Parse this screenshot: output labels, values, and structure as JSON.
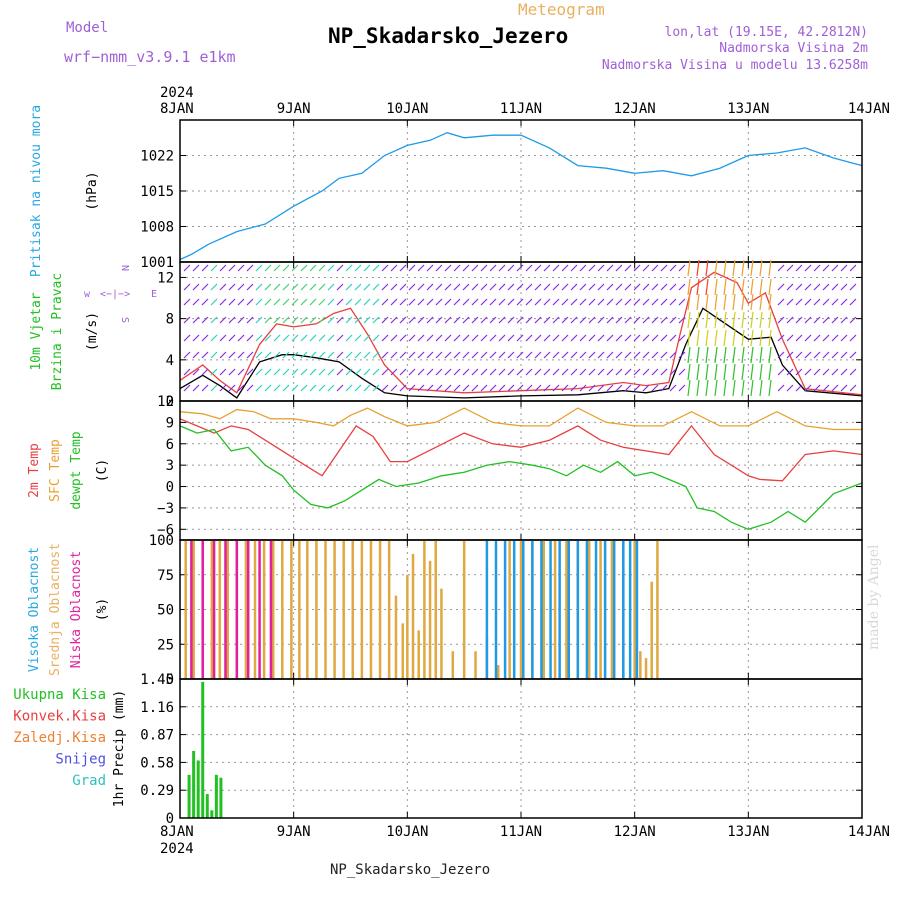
{
  "header": {
    "model_label": "Model",
    "model_name": "wrf−nmm_v3.9.1  e1km",
    "subtitle": "Meteogram",
    "title": "NP_Skadarsko_Jezero",
    "coords": "lon,lat (19.15E, 42.2812N)",
    "elevation": "Nadmorska Visina 2m",
    "model_elevation": "Nadmorska Visina u modelu 13.6258m",
    "footer_title": "NP_Skadarsko_Jezero",
    "watermark": "made by Angel",
    "year": "2024",
    "colors": {
      "purple": "#a05fd6",
      "orange": "#e8b060",
      "title": "#000000"
    }
  },
  "chart_data": [
    {
      "type": "line",
      "title": "",
      "ylabel": [
        "Pritisak na nivou mora",
        "(hPa)"
      ],
      "ylabel_colors": [
        "#28a8e0",
        "#000000"
      ],
      "x_ticks": [
        "8JAN",
        "9JAN",
        "10JAN",
        "11JAN",
        "12JAN",
        "13JAN",
        "14JAN"
      ],
      "ylim": [
        1001,
        1029
      ],
      "y_ticks": [
        1001,
        1008,
        1015,
        1022
      ],
      "grid": true,
      "series": [
        {
          "color": "#1e9be6",
          "x": [
            0,
            0.1,
            0.25,
            0.5,
            0.75,
            1.0,
            1.25,
            1.4,
            1.6,
            1.8,
            2.0,
            2.2,
            2.35,
            2.5,
            2.75,
            3.0,
            3.25,
            3.5,
            3.75,
            4.0,
            4.25,
            4.5,
            4.75,
            5.0,
            5.25,
            5.5,
            5.75,
            6.0
          ],
          "y": [
            1001.5,
            1002.5,
            1004.5,
            1007,
            1008.5,
            1012,
            1015,
            1017.5,
            1018.5,
            1022,
            1024,
            1025,
            1026.5,
            1025.5,
            1026,
            1026,
            1023.5,
            1020,
            1019.5,
            1018.5,
            1019,
            1018,
            1019.5,
            1022,
            1022.5,
            1023.5,
            1021.5,
            1020
          ]
        }
      ]
    },
    {
      "type": "line",
      "title": "",
      "ylabel": [
        "10m Vjetar",
        "Brzina i Pravac",
        "(m/s)"
      ],
      "ylabel_colors": [
        "#22c022",
        "#22c022",
        "#000000"
      ],
      "compass": [
        "w",
        "<−|−>",
        "E",
        "N",
        "S"
      ],
      "ylim": [
        0,
        13.5
      ],
      "y_ticks": [
        0,
        4,
        8,
        12
      ],
      "grid": true,
      "series": [
        {
          "color": "#000000",
          "x": [
            0,
            0.2,
            0.35,
            0.5,
            0.7,
            0.9,
            1.0,
            1.2,
            1.4,
            1.6,
            1.8,
            2.0,
            2.5,
            3.0,
            3.5,
            3.9,
            4.1,
            4.3,
            4.45,
            4.6,
            4.8,
            5.0,
            5.2,
            5.3,
            5.5,
            6.0
          ],
          "y": [
            1.2,
            2.5,
            1.5,
            0.3,
            3.8,
            4.5,
            4.5,
            4.2,
            3.8,
            2.2,
            0.8,
            0.5,
            0.3,
            0.5,
            0.6,
            1.0,
            0.8,
            1.2,
            5.5,
            9.0,
            7.5,
            6.0,
            6.2,
            3.5,
            1.0,
            0.5
          ]
        },
        {
          "color": "#e84040",
          "x": [
            0,
            0.2,
            0.35,
            0.5,
            0.7,
            0.85,
            1.0,
            1.2,
            1.35,
            1.5,
            1.65,
            1.8,
            2.0,
            2.5,
            3.0,
            3.5,
            3.9,
            4.1,
            4.3,
            4.4,
            4.5,
            4.7,
            4.9,
            5.0,
            5.15,
            5.3,
            5.5,
            6.0
          ],
          "y": [
            2.0,
            3.5,
            2.0,
            0.8,
            5.5,
            7.5,
            7.2,
            7.5,
            8.5,
            9.0,
            6.5,
            3.5,
            1.2,
            0.8,
            1.0,
            1.2,
            1.8,
            1.5,
            1.8,
            6.5,
            11.0,
            12.5,
            11.5,
            9.5,
            10.5,
            6.0,
            1.2,
            0.6
          ]
        }
      ]
    },
    {
      "type": "line",
      "title": "",
      "ylabel": [
        "2m Temp",
        "SFC Temp",
        "dewpt Temp",
        "(C)"
      ],
      "ylabel_colors": [
        "#e84040",
        "#e8a030",
        "#22c022",
        "#000000"
      ],
      "ylim": [
        -7.5,
        12
      ],
      "y_ticks": [
        -6,
        -3,
        0,
        3,
        6,
        9,
        12
      ],
      "grid": true,
      "series": [
        {
          "name": "2m Temp",
          "color": "#e84040",
          "x": [
            0,
            0.15,
            0.3,
            0.45,
            0.6,
            0.75,
            0.9,
            1.1,
            1.25,
            1.4,
            1.55,
            1.7,
            1.85,
            2.0,
            2.25,
            2.5,
            2.75,
            3.0,
            3.25,
            3.5,
            3.7,
            3.9,
            4.1,
            4.3,
            4.5,
            4.7,
            4.9,
            5.0,
            5.1,
            5.3,
            5.5,
            5.75,
            6.0
          ],
          "y": [
            9.5,
            8.5,
            7.5,
            8.5,
            8.0,
            6.5,
            5.0,
            3.0,
            1.5,
            5.0,
            8.5,
            7.0,
            3.5,
            3.5,
            5.5,
            7.5,
            6.0,
            5.5,
            6.5,
            8.5,
            6.5,
            5.5,
            5.0,
            4.5,
            8.5,
            4.5,
            2.5,
            1.5,
            1.0,
            0.8,
            4.5,
            5.0,
            4.5
          ]
        },
        {
          "name": "SFC Temp",
          "color": "#e8a030",
          "x": [
            0,
            0.2,
            0.35,
            0.5,
            0.65,
            0.8,
            1.0,
            1.2,
            1.35,
            1.5,
            1.65,
            1.8,
            2.0,
            2.25,
            2.5,
            2.75,
            3.0,
            3.25,
            3.5,
            3.75,
            4.0,
            4.25,
            4.5,
            4.75,
            5.0,
            5.25,
            5.5,
            5.75,
            6.0
          ],
          "y": [
            10.5,
            10.2,
            9.5,
            10.8,
            10.5,
            9.5,
            9.5,
            9.0,
            8.5,
            10.0,
            11.0,
            9.8,
            8.5,
            9.0,
            11.0,
            9.0,
            8.5,
            8.5,
            11.0,
            9.0,
            8.5,
            8.5,
            10.5,
            8.5,
            8.5,
            10.5,
            8.5,
            8.0,
            8.0
          ]
        },
        {
          "name": "dewpt Temp",
          "color": "#22c022",
          "x": [
            0,
            0.15,
            0.3,
            0.45,
            0.6,
            0.75,
            0.9,
            1.0,
            1.15,
            1.3,
            1.45,
            1.6,
            1.75,
            1.9,
            2.1,
            2.3,
            2.5,
            2.7,
            2.9,
            3.1,
            3.25,
            3.4,
            3.55,
            3.7,
            3.85,
            4.0,
            4.15,
            4.3,
            4.45,
            4.55,
            4.7,
            4.85,
            5.0,
            5.1,
            5.2,
            5.35,
            5.5,
            5.75,
            6.0
          ],
          "y": [
            8.5,
            7.5,
            8.0,
            5.0,
            5.5,
            3.0,
            1.5,
            -0.5,
            -2.5,
            -3.0,
            -2.0,
            -0.5,
            1.0,
            0.0,
            0.5,
            1.5,
            2.0,
            3.0,
            3.5,
            3.0,
            2.5,
            1.5,
            3.0,
            2.0,
            3.5,
            1.5,
            2.0,
            1.0,
            0.0,
            -3.0,
            -3.5,
            -5.0,
            -6.0,
            -5.5,
            -5.0,
            -3.5,
            -5.0,
            -1.0,
            0.5
          ]
        }
      ]
    },
    {
      "type": "bar",
      "title": "",
      "ylabel": [
        "Visoka Oblacnost",
        "Srednja Oblacnost",
        "Niska Oblacnost",
        "(%)"
      ],
      "ylabel_colors": [
        "#28a8e0",
        "#e8b060",
        "#e020a0",
        "#000000"
      ],
      "ylim": [
        0,
        100
      ],
      "y_ticks": [
        0,
        25,
        50,
        75,
        100
      ],
      "grid": true,
      "series": [
        {
          "name": "Srednja Oblacnost",
          "color": "#e0a840",
          "x": [
            0.05,
            0.12,
            0.2,
            0.28,
            0.35,
            0.42,
            0.5,
            0.58,
            0.66,
            0.74,
            0.82,
            0.9,
            0.98,
            1.05,
            1.12,
            1.2,
            1.28,
            1.36,
            1.44,
            1.52,
            1.6,
            1.68,
            1.76,
            1.84,
            1.9,
            1.96,
            2.0,
            2.05,
            2.1,
            2.15,
            2.2,
            2.25,
            2.3,
            2.4,
            2.5,
            2.6,
            2.7,
            2.8,
            2.9,
            3.0,
            3.1,
            3.2,
            3.3,
            3.4,
            3.5,
            3.6,
            3.7,
            3.8,
            3.9,
            4.0,
            4.05,
            4.1,
            4.15,
            4.2
          ],
          "y": [
            100,
            100,
            100,
            100,
            100,
            100,
            100,
            100,
            100,
            100,
            100,
            100,
            100,
            100,
            100,
            100,
            100,
            100,
            100,
            100,
            100,
            100,
            100,
            100,
            60,
            40,
            75,
            90,
            35,
            100,
            85,
            100,
            65,
            20,
            100,
            20,
            30,
            10,
            100,
            100,
            100,
            100,
            100,
            100,
            100,
            100,
            100,
            100,
            100,
            100,
            20,
            15,
            70,
            100
          ]
        },
        {
          "name": "Visoka Oblacnost",
          "color": "#1e9be6",
          "x": [
            2.7,
            2.78,
            2.86,
            2.94,
            3.02,
            3.1,
            3.18,
            3.26,
            3.34,
            3.42,
            3.5,
            3.58,
            3.66,
            3.74,
            3.82,
            3.9,
            3.96,
            4.02
          ],
          "y": [
            100,
            100,
            100,
            100,
            100,
            100,
            100,
            100,
            100,
            100,
            100,
            100,
            100,
            100,
            100,
            100,
            100,
            100
          ]
        },
        {
          "name": "Niska Oblacnost",
          "color": "#e020a0",
          "x": [
            0.1,
            0.2,
            0.3,
            0.4,
            0.5,
            0.6,
            0.7,
            0.8
          ],
          "y": [
            100,
            100,
            100,
            100,
            100,
            100,
            100,
            100
          ]
        }
      ]
    },
    {
      "type": "bar",
      "title": "",
      "ylabel": [
        "1hr Precip (mm)"
      ],
      "ylabel_colors": [
        "#000000"
      ],
      "legend": [
        {
          "name": "Ukupna Kisa",
          "color": "#22c022"
        },
        {
          "name": "Konvek.Kisa",
          "color": "#e84040"
        },
        {
          "name": "Zaledj.Kisa",
          "color": "#f08030"
        },
        {
          "name": "Snijeg",
          "color": "#5050e0"
        },
        {
          "name": "Grad",
          "color": "#30c0c0"
        }
      ],
      "ylim": [
        0,
        1.45
      ],
      "y_ticks": [
        0,
        0.29,
        0.58,
        0.87,
        1.16,
        1.45
      ],
      "x_ticks": [
        "8JAN",
        "9JAN",
        "10JAN",
        "11JAN",
        "12JAN",
        "13JAN",
        "14JAN"
      ],
      "grid": true,
      "series": [
        {
          "name": "Ukupna Kisa",
          "color": "#22c022",
          "x": [
            0.08,
            0.12,
            0.16,
            0.2,
            0.24,
            0.28,
            0.32,
            0.36,
            0.4
          ],
          "y": [
            0.45,
            0.7,
            0.6,
            1.42,
            0.25,
            0.08,
            0.45,
            0.42,
            0.0
          ]
        }
      ]
    }
  ]
}
